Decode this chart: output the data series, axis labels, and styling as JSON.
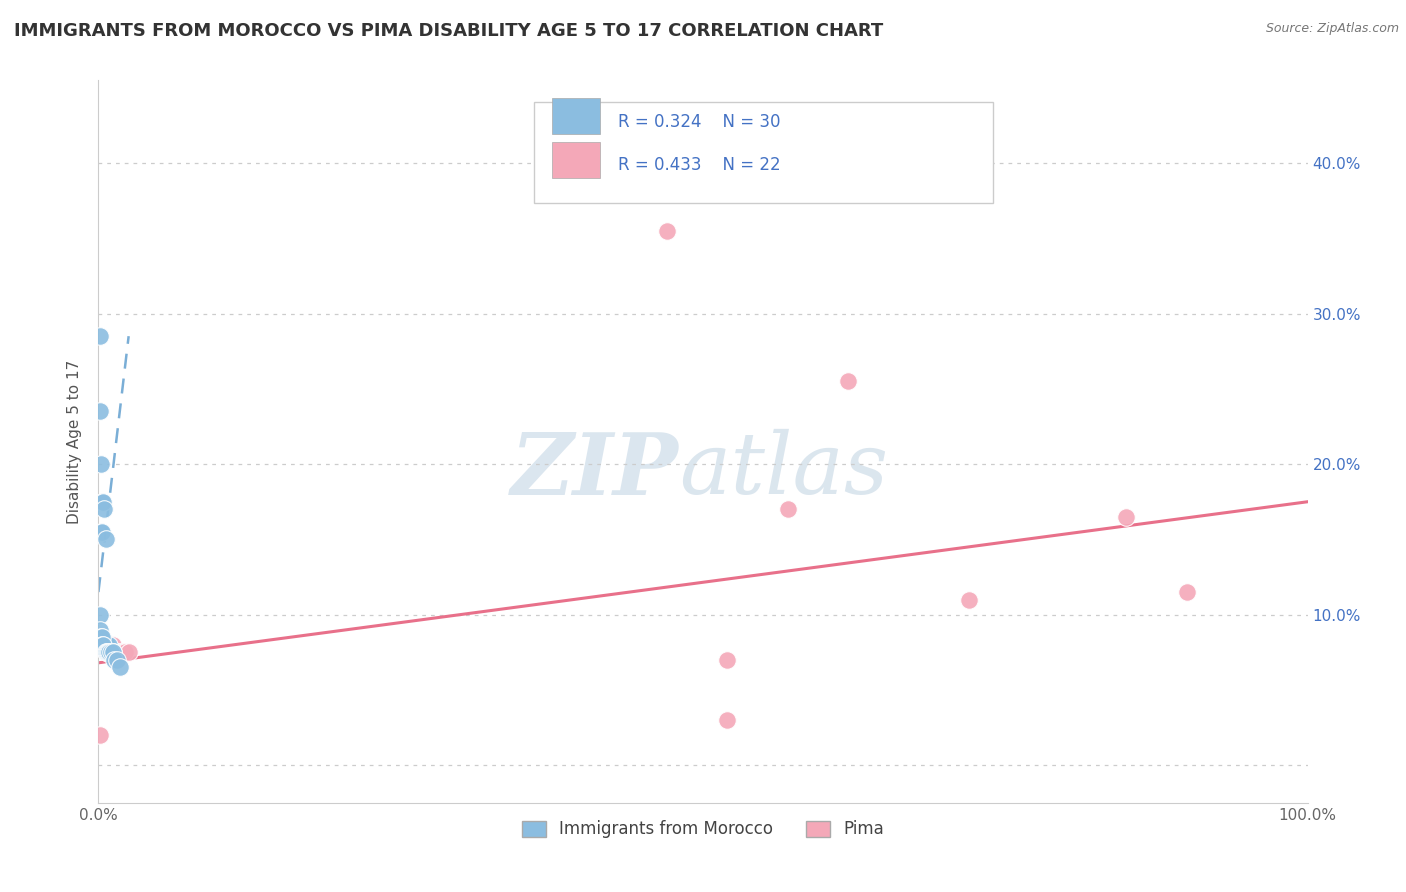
{
  "title": "IMMIGRANTS FROM MOROCCO VS PIMA DISABILITY AGE 5 TO 17 CORRELATION CHART",
  "source": "Source: ZipAtlas.com",
  "ylabel": "Disability Age 5 to 17",
  "ytick_values": [
    0.0,
    0.1,
    0.2,
    0.3,
    0.4
  ],
  "xlim": [
    0.0,
    1.0
  ],
  "ylim": [
    -0.025,
    0.455
  ],
  "watermark_zip": "ZIP",
  "watermark_atlas": "atlas",
  "legend1_label": "Immigrants from Morocco",
  "legend2_label": "Pima",
  "r1": "0.324",
  "n1": "30",
  "r2": "0.433",
  "n2": "22",
  "color_blue": "#8bbde0",
  "color_pink": "#f4a8b8",
  "color_blue_line": "#7aaed6",
  "color_pink_line": "#e8708a",
  "color_title": "#333333",
  "color_legend_text": "#4472c4",
  "color_grid": "#cccccc",
  "blue_x": [
    0.001,
    0.001,
    0.002,
    0.002,
    0.003,
    0.003,
    0.004,
    0.005,
    0.006,
    0.007,
    0.008,
    0.009,
    0.01,
    0.011,
    0.012,
    0.001,
    0.001,
    0.002,
    0.003,
    0.003,
    0.004,
    0.006,
    0.007,
    0.008,
    0.009,
    0.01,
    0.012,
    0.013,
    0.015,
    0.018
  ],
  "blue_y": [
    0.285,
    0.235,
    0.2,
    0.155,
    0.175,
    0.155,
    0.175,
    0.17,
    0.15,
    0.08,
    0.08,
    0.08,
    0.075,
    0.075,
    0.075,
    0.1,
    0.09,
    0.085,
    0.085,
    0.08,
    0.08,
    0.075,
    0.075,
    0.075,
    0.075,
    0.075,
    0.075,
    0.07,
    0.07,
    0.065
  ],
  "pink_x": [
    0.001,
    0.002,
    0.003,
    0.004,
    0.005,
    0.006,
    0.008,
    0.01,
    0.012,
    0.015,
    0.018,
    0.02,
    0.022,
    0.025,
    0.47,
    0.52,
    0.52,
    0.57,
    0.62,
    0.72,
    0.85,
    0.9
  ],
  "pink_y": [
    0.02,
    0.08,
    0.08,
    0.08,
    0.08,
    0.075,
    0.08,
    0.08,
    0.08,
    0.075,
    0.075,
    0.075,
    0.075,
    0.075,
    0.355,
    0.07,
    0.03,
    0.17,
    0.255,
    0.11,
    0.165,
    0.115
  ],
  "blue_trend_x": [
    0.0,
    0.025
  ],
  "blue_trend_y": [
    0.115,
    0.285
  ],
  "pink_trend_x": [
    0.0,
    1.0
  ],
  "pink_trend_y": [
    0.068,
    0.175
  ]
}
